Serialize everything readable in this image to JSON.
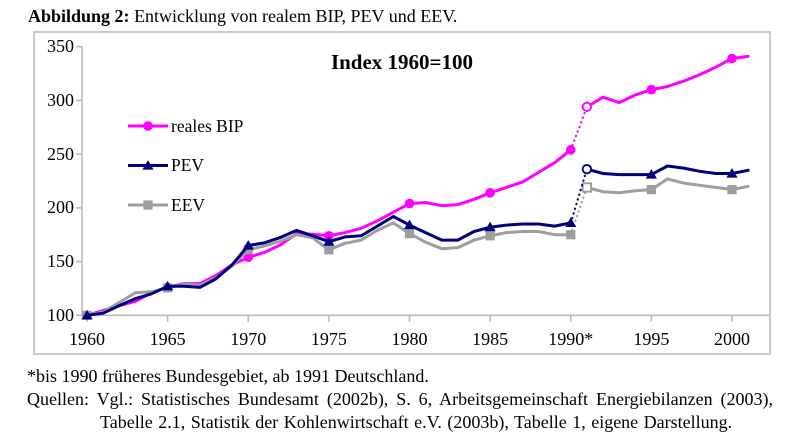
{
  "caption": {
    "label": "Abbildung 2:",
    "text": " Entwicklung von realem BIP, PEV und EEV."
  },
  "footer": {
    "footnote": "*bis 1990 früheres Bundesgebiet, ab 1991 Deutschland.",
    "sources_line1": "Quellen: Vgl.: Statistisches Bundesamt (2002b), S. 6, Arbeitsgemeinschaft Energiebilanzen (2003),",
    "sources_line2": "Tabelle 2.1, Statistik der Kohlenwirtschaft e.V. (2003b), Tabelle 1, eigene Darstellung."
  },
  "chart_data": {
    "type": "line",
    "title": "Index 1960=100",
    "years": [
      1960,
      1961,
      1962,
      1963,
      1964,
      1965,
      1966,
      1967,
      1968,
      1969,
      1970,
      1971,
      1972,
      1973,
      1974,
      1975,
      1976,
      1977,
      1978,
      1979,
      1980,
      1981,
      1982,
      1983,
      1984,
      1985,
      1986,
      1987,
      1988,
      1989,
      1990,
      1991,
      1992,
      1993,
      1994,
      1995,
      1996,
      1997,
      1998,
      1999,
      2000,
      2001
    ],
    "break_note": "dotted gap between 1990 (West Germany) and 1991 (Germany), 1991 shown with open markers",
    "series": [
      {
        "name": "reales BIP",
        "color": "#ff00ff",
        "marker": "circle",
        "z": 0,
        "values": [
          100,
          104.5,
          109,
          113,
          121,
          126,
          129.5,
          129.5,
          137,
          147,
          154,
          158.5,
          165.5,
          176,
          175.5,
          174,
          177,
          181,
          188,
          196,
          204,
          205,
          202,
          203,
          208,
          214,
          219,
          224,
          233,
          242,
          254,
          294,
          303,
          298,
          305,
          310,
          313,
          318,
          324,
          331,
          339,
          341
        ]
      },
      {
        "name": "PEV",
        "color": "#000080",
        "marker": "triangle",
        "z": 2,
        "values": [
          100,
          102,
          109,
          115.5,
          120,
          127,
          127,
          126,
          134,
          147,
          165,
          167.5,
          172.5,
          179,
          174,
          168.5,
          173,
          174,
          183,
          192,
          184,
          177,
          170,
          170,
          178,
          182,
          184,
          185,
          185,
          183,
          186,
          236,
          232,
          231,
          231,
          231,
          239,
          237,
          234,
          232,
          232,
          235
        ]
      },
      {
        "name": "EEV",
        "color": "#9e9e9e",
        "marker": "square",
        "z": 1,
        "values": [
          100,
          103,
          112,
          121,
          122,
          125.5,
          129,
          128,
          135,
          146,
          161,
          164.5,
          169,
          175,
          172,
          161,
          167,
          170,
          179,
          186,
          176,
          168,
          162,
          163,
          170,
          174,
          177,
          178,
          178,
          175,
          175,
          219,
          215,
          214,
          216,
          217,
          227,
          223,
          221,
          219,
          217,
          220
        ]
      }
    ],
    "marker_years": [
      1960,
      1965,
      1970,
      1975,
      1980,
      1985,
      1990,
      1995,
      2000
    ],
    "open_marker_year": 1991,
    "yticks": [
      100,
      150,
      200,
      250,
      300,
      350
    ],
    "xticks": [
      {
        "year": 1960,
        "label": "1960"
      },
      {
        "year": 1965,
        "label": "1965"
      },
      {
        "year": 1970,
        "label": "1970"
      },
      {
        "year": 1975,
        "label": "1975"
      },
      {
        "year": 1980,
        "label": "1980"
      },
      {
        "year": 1985,
        "label": "1985"
      },
      {
        "year": 1990,
        "label": "1990*"
      },
      {
        "year": 1995,
        "label": "1995"
      },
      {
        "year": 2000,
        "label": "2000"
      }
    ],
    "ylim": [
      100,
      350
    ],
    "xlim": [
      1960,
      2001
    ],
    "axis_color": "#bbbbbb",
    "legend_position": "inside-left"
  }
}
